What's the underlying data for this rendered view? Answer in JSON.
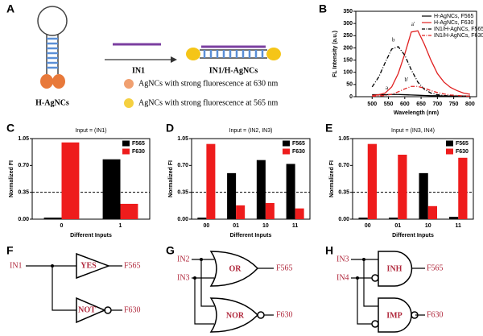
{
  "panels": {
    "letters": [
      "A",
      "B",
      "C",
      "D",
      "E",
      "F",
      "G",
      "H"
    ],
    "A": {
      "hairpin_label": "H-AgNCs",
      "input_label": "IN1",
      "product_label": "IN1/H-AgNCs",
      "legend": [
        "AgNCs with strong fluorescence at 630 nm",
        "AgNCs with strong fluorescence at 565 nm"
      ]
    },
    "F": {
      "inputs": [
        "IN1"
      ],
      "gates": [
        "YES",
        "NOT"
      ],
      "outputs": [
        "F565",
        "F630"
      ]
    },
    "G": {
      "inputs": [
        "IN2",
        "IN3"
      ],
      "gates": [
        "OR",
        "NOR"
      ],
      "outputs": [
        "F565",
        "F630"
      ]
    },
    "H": {
      "inputs": [
        "IN3",
        "IN4"
      ],
      "gates": [
        "INH",
        "IMP"
      ],
      "outputs": [
        "F565",
        "F630"
      ]
    }
  },
  "chart_data": [
    {
      "type": "line",
      "xlabel": "Wavelength (nm)",
      "ylabel": "FL Intensity (a.u.)",
      "legend": "upper right",
      "x": [
        500,
        520,
        540,
        560,
        580,
        600,
        620,
        640,
        660,
        680,
        700,
        720,
        740,
        760,
        780,
        800
      ],
      "xlim": [
        450,
        820
      ],
      "xticks": [
        500,
        550,
        600,
        650,
        700,
        750,
        800
      ],
      "ylim": [
        0,
        350
      ],
      "yticks": [
        0,
        50,
        100,
        150,
        200,
        250,
        300,
        350
      ],
      "series": [
        {
          "name": "H-AgNCs, F565",
          "color": "#000000",
          "dash": false,
          "label": "a",
          "values": [
            8,
            8,
            8,
            9,
            9,
            8,
            7,
            6,
            5,
            4,
            4,
            3,
            3,
            3,
            3,
            3
          ]
        },
        {
          "name": "H-AgNCs, F630",
          "color": "#e02020",
          "dash": false,
          "label": "a'",
          "values": [
            5,
            8,
            15,
            40,
            95,
            175,
            265,
            270,
            215,
            150,
            95,
            60,
            38,
            25,
            15,
            10
          ]
        },
        {
          "name": "IN1/H-AgNCs, F565",
          "color": "#000000",
          "dash": true,
          "label": "b",
          "values": [
            40,
            80,
            140,
            195,
            205,
            170,
            110,
            60,
            30,
            15,
            8,
            5,
            3,
            2,
            2,
            2
          ]
        },
        {
          "name": "IN1/H-AgNCs, F630",
          "color": "#e02020",
          "dash": true,
          "label": "b'",
          "values": [
            2,
            3,
            5,
            10,
            20,
            32,
            42,
            42,
            35,
            25,
            17,
            11,
            7,
            5,
            3,
            2
          ]
        }
      ]
    },
    {
      "type": "bar",
      "title": "Input = (IN1)",
      "xlabel": "Different Inputs",
      "ylabel": "Normalized FI",
      "categories": [
        "0",
        "1"
      ],
      "ylim": [
        0,
        1.05
      ],
      "threshold": 0.35,
      "yticks": [
        {
          "value": 0,
          "label": "0.00"
        },
        {
          "value": 0.35,
          "label": "0.35"
        },
        {
          "value": 0.7,
          "label": "0.70"
        },
        {
          "value": 1.05,
          "label": "1.05"
        }
      ],
      "series": [
        {
          "name": "F565",
          "color": "#000000",
          "values": [
            0.02,
            0.78
          ]
        },
        {
          "name": "F630",
          "color": "#ee1c1c",
          "values": [
            1.0,
            0.2
          ]
        }
      ]
    },
    {
      "type": "bar",
      "title": "Input = (IN2, IN3)",
      "xlabel": "Different Inputs",
      "ylabel": "Normalized FI",
      "categories": [
        "00",
        "01",
        "10",
        "11"
      ],
      "ylim": [
        0,
        1.05
      ],
      "threshold": 0.35,
      "yticks": [
        {
          "value": 0,
          "label": "0.00"
        },
        {
          "value": 0.35,
          "label": "0.35"
        },
        {
          "value": 0.7,
          "label": "0.70"
        },
        {
          "value": 1.05,
          "label": "1.05"
        }
      ],
      "series": [
        {
          "name": "F565",
          "color": "#000000",
          "values": [
            0.02,
            0.6,
            0.77,
            0.72
          ]
        },
        {
          "name": "F630",
          "color": "#ee1c1c",
          "values": [
            0.98,
            0.18,
            0.21,
            0.14
          ]
        }
      ]
    },
    {
      "type": "bar",
      "title": "Input = (IN3, IN4)",
      "xlabel": "Different Inputs",
      "ylabel": "Normalized FI",
      "categories": [
        "00",
        "01",
        "10",
        "11"
      ],
      "ylim": [
        0,
        1.05
      ],
      "threshold": 0.35,
      "yticks": [
        {
          "value": 0,
          "label": "0.00"
        },
        {
          "value": 0.35,
          "label": "0.35"
        },
        {
          "value": 0.7,
          "label": "0.70"
        },
        {
          "value": 1.05,
          "label": "1.05"
        }
      ],
      "series": [
        {
          "name": "F565",
          "color": "#000000",
          "values": [
            0.02,
            0.02,
            0.6,
            0.03
          ]
        },
        {
          "name": "F630",
          "color": "#ee1c1c",
          "values": [
            0.98,
            0.84,
            0.17,
            0.8
          ]
        }
      ]
    }
  ]
}
